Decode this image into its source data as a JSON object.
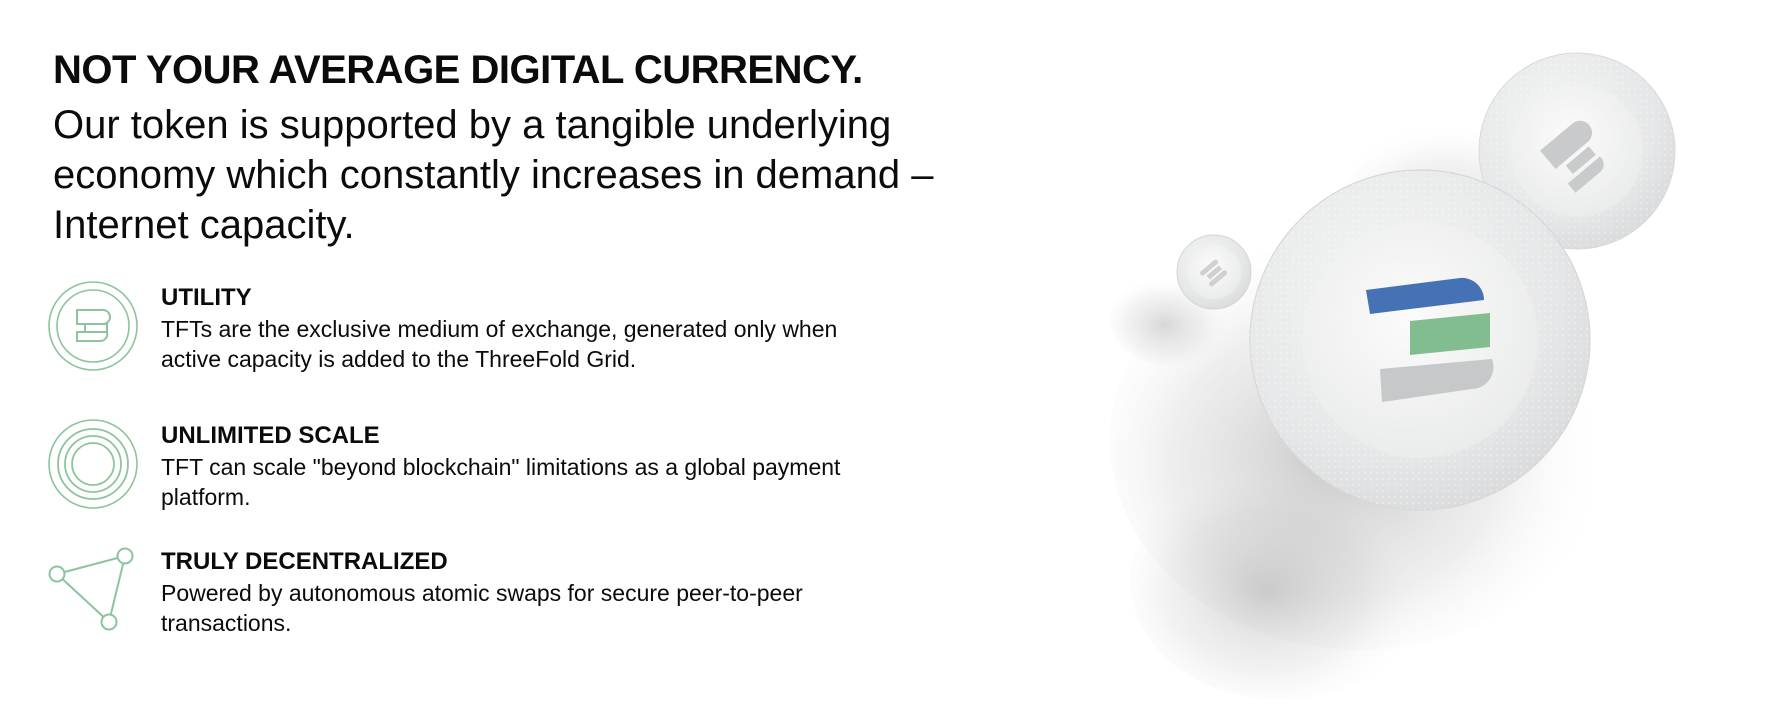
{
  "hero": {
    "headline": "NOT YOUR AVERAGE DIGITAL CURRENCY.",
    "subhead": "Our token is supported by a tangible underlying economy which constantly increases in demand – Internet capacity."
  },
  "features": [
    {
      "title": "UTILITY",
      "description": "TFTs are the exclusive medium of exchange, generated only when active capacity is added to the ThreeFold Grid.",
      "icon": "token-icon"
    },
    {
      "title": "UNLIMITED SCALE",
      "description": "TFT can scale \"beyond blockchain\" limitations as a global payment platform.",
      "icon": "concentric-circles-icon"
    },
    {
      "title": "TRULY DECENTRALIZED",
      "description": "Powered by autonomous atomic swaps for secure peer-to-peer transactions.",
      "icon": "network-nodes-icon"
    }
  ],
  "illustration": {
    "name": "threefold-coins",
    "colors": {
      "blue": "#4472b5",
      "green": "#82bd8f",
      "gray": "#c6c8c9",
      "icon_green": "#8cc49c"
    }
  }
}
